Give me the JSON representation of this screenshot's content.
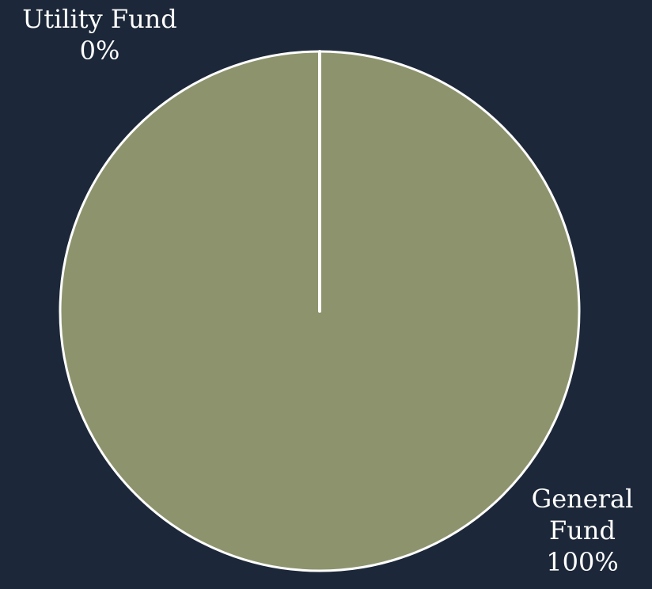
{
  "chart_data": {
    "type": "pie",
    "slices": [
      {
        "label": "General Fund",
        "label_lines": [
          "General",
          "Fund"
        ],
        "value": 100,
        "percent_label": "100%",
        "color": "#8d946d"
      },
      {
        "label": "Utility Fund",
        "label_lines": [
          "Utility Fund"
        ],
        "value": 0,
        "percent_label": "0%",
        "color": "#8d946d"
      }
    ],
    "start_angle_deg": 0,
    "direction": "clockwise",
    "stroke_color": "#ffffff",
    "background_color": "#1c2839"
  }
}
